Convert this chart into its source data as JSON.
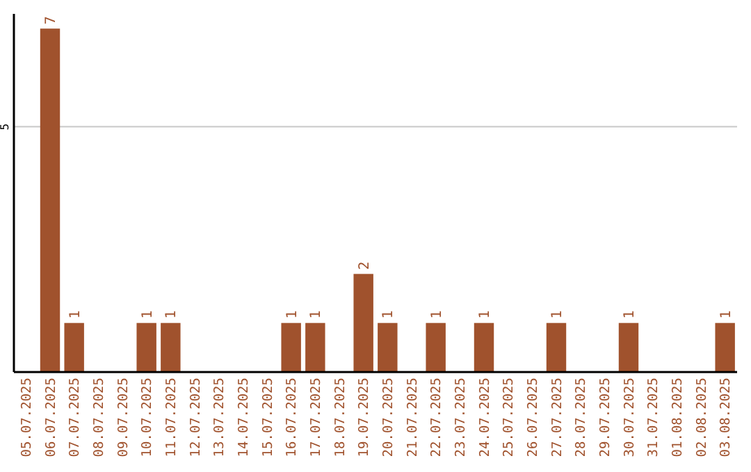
{
  "chart_data": {
    "type": "bar",
    "categories": [
      "05.07.2025",
      "06.07.2025",
      "07.07.2025",
      "08.07.2025",
      "09.07.2025",
      "10.07.2025",
      "11.07.2025",
      "12.07.2025",
      "13.07.2025",
      "14.07.2025",
      "15.07.2025",
      "16.07.2025",
      "17.07.2025",
      "18.07.2025",
      "19.07.2025",
      "20.07.2025",
      "21.07.2025",
      "22.07.2025",
      "23.07.2025",
      "24.07.2025",
      "25.07.2025",
      "26.07.2025",
      "27.07.2025",
      "28.07.2025",
      "29.07.2025",
      "30.07.2025",
      "31.07.2025",
      "01.08.2025",
      "02.08.2025",
      "03.08.2025"
    ],
    "values": [
      0,
      7,
      1,
      0,
      0,
      1,
      1,
      0,
      0,
      0,
      0,
      1,
      1,
      0,
      2,
      1,
      0,
      1,
      0,
      1,
      0,
      0,
      1,
      0,
      0,
      1,
      0,
      0,
      0,
      1
    ],
    "value_labels": [
      null,
      "7",
      "1",
      null,
      null,
      "1",
      "1",
      null,
      null,
      null,
      null,
      "1",
      "1",
      null,
      "2",
      "1",
      null,
      "1",
      null,
      "1",
      null,
      null,
      "1",
      null,
      null,
      "1",
      null,
      null,
      null,
      "1"
    ],
    "color": "#a0522d",
    "ylim": [
      0,
      7.3
    ],
    "yticks": [
      5
    ],
    "grid": "y"
  }
}
